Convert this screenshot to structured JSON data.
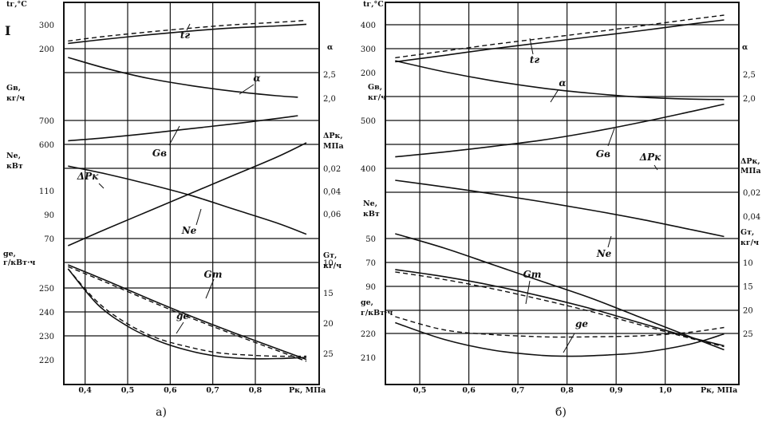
{
  "margin_mark": "I",
  "chart_data": [
    {
      "type": "line",
      "panel_label": "а)",
      "xlabel": "Pк, МПа",
      "xlim": [
        0.35,
        0.95
      ],
      "x_ticks": [
        "0,4",
        "0,5",
        "0,6",
        "0,7",
        "0,8"
      ],
      "x_tick_values": [
        0.4,
        0.5,
        0.6,
        0.7,
        0.8
      ],
      "left_scales": [
        {
          "label": "tг,°С",
          "ticks": [
            "300",
            "200"
          ],
          "tick_values": [
            300,
            200
          ],
          "range": [
            200,
            300
          ]
        },
        {
          "label": "Gв, кг/ч",
          "ticks": [
            "700",
            "600"
          ],
          "tick_values": [
            700,
            600
          ],
          "range": [
            600,
            700
          ]
        },
        {
          "label": "Nе, кВт",
          "ticks": [
            "110",
            "90",
            "70"
          ],
          "tick_values": [
            110,
            90,
            70
          ],
          "range": [
            70,
            110
          ]
        },
        {
          "label": "gе, г/кВт·ч",
          "ticks": [
            "250",
            "240",
            "230",
            "220"
          ],
          "tick_values": [
            250,
            240,
            230,
            220
          ],
          "range": [
            220,
            250
          ]
        }
      ],
      "right_scales": [
        {
          "label": "α",
          "ticks": [
            "2,5",
            "2,0"
          ],
          "tick_values": [
            2.5,
            2.0
          ],
          "range": [
            2.0,
            2.5
          ]
        },
        {
          "label": "ΔPк, МПа",
          "ticks": [
            "0,06",
            "0,04",
            "0,02"
          ],
          "tick_values": [
            0.06,
            0.04,
            0.02
          ],
          "range": [
            0.02,
            0.06
          ]
        },
        {
          "label": "Gт, кг/ч",
          "ticks": [
            "25",
            "20",
            "15",
            "10"
          ],
          "tick_values": [
            25,
            20,
            15,
            10
          ],
          "range": [
            10,
            25
          ]
        }
      ],
      "series": [
        {
          "name": "tг",
          "scale": "tг,°С",
          "style": "solid",
          "x": [
            0.36,
            0.45,
            0.55,
            0.65,
            0.75,
            0.85,
            0.92
          ],
          "y": [
            222,
            240,
            258,
            274,
            287,
            295,
            302
          ]
        },
        {
          "scale": "tг,°С",
          "style": "dashed",
          "x": [
            0.36,
            0.45,
            0.55,
            0.65,
            0.75,
            0.85,
            0.92
          ],
          "y": [
            232,
            252,
            270,
            286,
            300,
            310,
            318
          ]
        },
        {
          "name": "α",
          "scale": "α",
          "style": "solid",
          "x": [
            0.36,
            0.45,
            0.55,
            0.65,
            0.75,
            0.85,
            0.9
          ],
          "y": [
            2.85,
            2.62,
            2.41,
            2.26,
            2.14,
            2.05,
            2.02
          ]
        },
        {
          "name": "Gв",
          "scale": "Gв, кг/ч",
          "style": "solid",
          "x": [
            0.36,
            0.45,
            0.55,
            0.65,
            0.75,
            0.85,
            0.9
          ],
          "y": [
            615,
            628,
            646,
            666,
            686,
            708,
            720
          ]
        },
        {
          "name": "ΔPк",
          "scale": "ΔPк, МПа",
          "style": "solid",
          "x": [
            0.36,
            0.45,
            0.55,
            0.65,
            0.75,
            0.85,
            0.92
          ],
          "y": [
            0.018,
            0.025,
            0.034,
            0.044,
            0.056,
            0.068,
            0.078
          ]
        },
        {
          "name": "Nе",
          "scale": "Nе, кВт",
          "style": "solid",
          "x": [
            0.36,
            0.45,
            0.55,
            0.65,
            0.75,
            0.85,
            0.92
          ],
          "y": [
            64,
            78,
            93,
            108,
            123,
            138,
            150
          ]
        },
        {
          "name": "Gт",
          "scale": "Gт, кг/ч",
          "style": "solid",
          "x": [
            0.36,
            0.45,
            0.55,
            0.65,
            0.75,
            0.85,
            0.92
          ],
          "y": [
            10.4,
            13.0,
            16.0,
            18.9,
            21.6,
            24.2,
            26.0
          ]
        },
        {
          "scale": "Gт, кг/ч",
          "style": "dashed",
          "x": [
            0.36,
            0.45,
            0.55,
            0.65,
            0.75,
            0.85,
            0.92
          ],
          "y": [
            10.7,
            13.3,
            16.3,
            19.2,
            21.9,
            24.5,
            26.3
          ]
        },
        {
          "name": "gе",
          "scale": "gе, г/кВт·ч",
          "style": "solid",
          "x": [
            0.36,
            0.43,
            0.5,
            0.57,
            0.64,
            0.71,
            0.78,
            0.85,
            0.92
          ],
          "y": [
            258,
            243,
            234,
            228,
            224,
            221.5,
            220.5,
            220.5,
            221
          ]
        },
        {
          "scale": "gе, г/кВт·ч",
          "style": "dashed",
          "x": [
            0.36,
            0.43,
            0.5,
            0.57,
            0.64,
            0.71,
            0.78,
            0.85,
            0.92
          ],
          "y": [
            258,
            244,
            235,
            229,
            225.5,
            223,
            222,
            221.5,
            221.5
          ]
        }
      ],
      "curve_labels": [
        {
          "text": "tг"
        },
        {
          "text": "α"
        },
        {
          "text": "Gв"
        },
        {
          "text": "ΔPк"
        },
        {
          "text": "Nе"
        },
        {
          "text": "Gт"
        },
        {
          "text": "gе"
        }
      ]
    },
    {
      "type": "line",
      "panel_label": "б)",
      "xlabel": "Pк, МПа",
      "xlim": [
        0.43,
        1.15
      ],
      "x_ticks": [
        "0,5",
        "0,6",
        "0,7",
        "0,8",
        "0,9",
        "1,0"
      ],
      "x_tick_values": [
        0.5,
        0.6,
        0.7,
        0.8,
        0.9,
        1.0
      ],
      "left_scales": [
        {
          "label": "tг,°С",
          "ticks": [
            "400",
            "300",
            "200"
          ],
          "tick_values": [
            400,
            300,
            200
          ],
          "range": [
            200,
            400
          ]
        },
        {
          "label": "Gв, кг/ч",
          "ticks": [
            "500",
            "400"
          ],
          "tick_values": [
            500,
            400
          ],
          "range": [
            400,
            500
          ]
        },
        {
          "label": "Nе, кВт",
          "ticks": [
            "90",
            "70",
            "50"
          ],
          "tick_values": [
            90,
            70,
            50
          ],
          "range": [
            50,
            90
          ]
        },
        {
          "label": "gе, г/кВт·ч",
          "ticks": [
            "220",
            "210"
          ],
          "tick_values": [
            220,
            210
          ],
          "range": [
            210,
            220
          ]
        }
      ],
      "right_scales": [
        {
          "label": "α",
          "ticks": [
            "2,5",
            "2,0"
          ],
          "tick_values": [
            2.5,
            2.0
          ],
          "range": [
            2.0,
            2.5
          ]
        },
        {
          "label": "ΔPк, МПа",
          "ticks": [
            "0,04",
            "0,02"
          ],
          "tick_values": [
            0.04,
            0.02
          ],
          "range": [
            0.02,
            0.04
          ]
        },
        {
          "label": "Gт, кг/ч",
          "ticks": [
            "25",
            "20",
            "15",
            "10"
          ],
          "tick_values": [
            25,
            20,
            15,
            10
          ],
          "range": [
            10,
            25
          ]
        }
      ],
      "series": [
        {
          "name": "tг",
          "scale": "tг,°С",
          "style": "solid",
          "x": [
            0.45,
            0.55,
            0.65,
            0.75,
            0.85,
            0.95,
            1.05,
            1.12
          ],
          "y": [
            245,
            272,
            300,
            325,
            350,
            375,
            402,
            420
          ]
        },
        {
          "scale": "tг,°С",
          "style": "dashed",
          "x": [
            0.45,
            0.55,
            0.65,
            0.75,
            0.85,
            0.95,
            1.05,
            1.12
          ],
          "y": [
            262,
            290,
            318,
            343,
            368,
            395,
            422,
            440
          ]
        },
        {
          "name": "α",
          "scale": "α",
          "style": "solid",
          "x": [
            0.45,
            0.55,
            0.65,
            0.75,
            0.85,
            0.95,
            1.05,
            1.12
          ],
          "y": [
            2.78,
            2.55,
            2.36,
            2.21,
            2.1,
            2.02,
            1.98,
            1.97
          ]
        },
        {
          "name": "Gв",
          "scale": "Gв, кг/ч",
          "style": "solid",
          "x": [
            0.45,
            0.55,
            0.65,
            0.75,
            0.85,
            0.95,
            1.05,
            1.12
          ],
          "y": [
            424,
            434,
            446,
            459,
            476,
            496,
            518,
            534
          ]
        },
        {
          "name": "ΔPк",
          "scale": "ΔPк, МПа",
          "style": "solid",
          "x": [
            0.45,
            0.55,
            0.65,
            0.75,
            0.85,
            0.95,
            1.05,
            1.12
          ],
          "y": [
            0.01,
            0.0155,
            0.0215,
            0.028,
            0.035,
            0.0425,
            0.051,
            0.057
          ]
        },
        {
          "name": "Nе",
          "scale": "Nе, кВт",
          "style": "solid",
          "x": [
            0.45,
            0.55,
            0.65,
            0.75,
            0.85,
            0.95,
            1.05,
            1.12
          ],
          "y": [
            46,
            58,
            72,
            86,
            100,
            116,
            132,
            143
          ]
        },
        {
          "name": "Gт",
          "scale": "Gт, кг/ч",
          "style": "solid",
          "x": [
            0.45,
            0.55,
            0.65,
            0.75,
            0.85,
            0.95,
            1.05,
            1.12
          ],
          "y": [
            11.5,
            13.0,
            14.9,
            17.2,
            19.8,
            22.8,
            25.8,
            27.6
          ]
        },
        {
          "scale": "Gт, кг/ч",
          "style": "dashed",
          "x": [
            0.45,
            0.55,
            0.65,
            0.75,
            0.85,
            0.95,
            1.05,
            1.12
          ],
          "y": [
            12.0,
            13.6,
            15.6,
            17.9,
            20.4,
            23.2,
            26.0,
            27.8
          ]
        },
        {
          "name": "gе",
          "scale": "gе, г/кВт·ч",
          "style": "solid",
          "x": [
            0.45,
            0.55,
            0.65,
            0.75,
            0.8,
            0.85,
            0.95,
            1.05,
            1.12
          ],
          "y": [
            224.5,
            217.5,
            213,
            210.8,
            210.5,
            210.7,
            212,
            215.5,
            219.8
          ]
        },
        {
          "scale": "gе, г/кВт·ч",
          "style": "dashed",
          "x": [
            0.45,
            0.55,
            0.65,
            0.75,
            0.8,
            0.85,
            0.95,
            1.05,
            1.12
          ],
          "y": [
            227,
            221.5,
            219.5,
            218.6,
            218.5,
            218.6,
            219,
            220.5,
            222.5
          ]
        }
      ],
      "curve_labels": [
        {
          "text": "tг"
        },
        {
          "text": "α"
        },
        {
          "text": "Gв"
        },
        {
          "text": "ΔPк"
        },
        {
          "text": "Nе"
        },
        {
          "text": "Gт"
        },
        {
          "text": "gе"
        }
      ]
    }
  ]
}
